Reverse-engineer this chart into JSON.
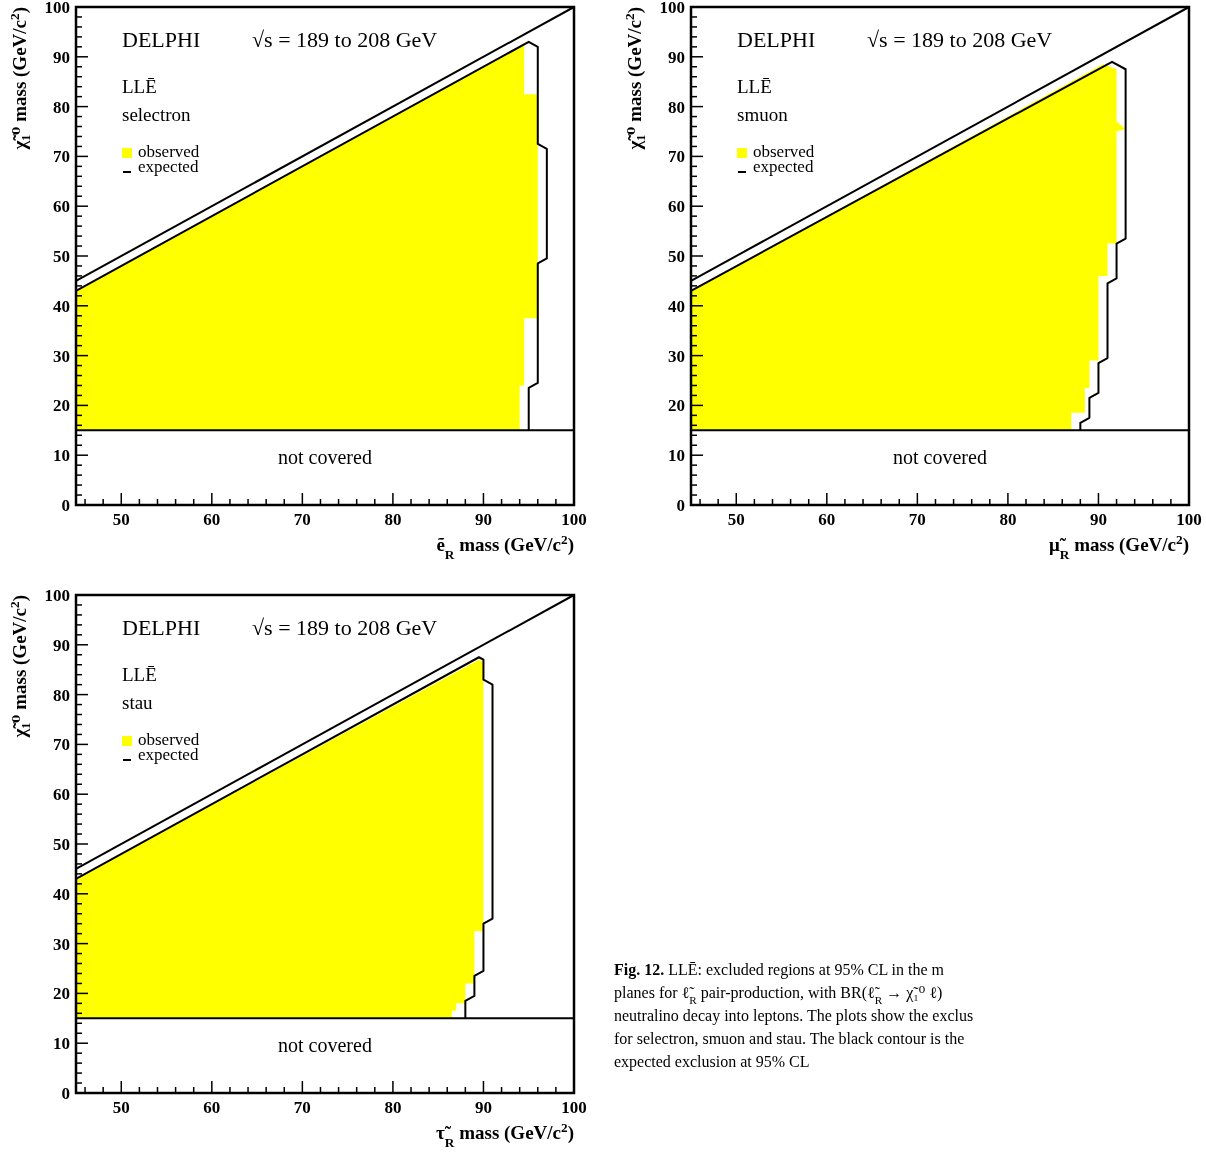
{
  "chart_data": [
    {
      "type": "area",
      "title": "DELPHI",
      "subtitle": "√s = 189 to 208 GeV",
      "annotations": [
        "LLĒ",
        "selectron"
      ],
      "xlabel": "ẽ$_{R}$ mass (GeV/c$^{2}$)",
      "ylabel": "χ̃₁⁰ mass (GeV/c$^{2}$)",
      "xlim": [
        45,
        100
      ],
      "ylim": [
        0,
        100
      ],
      "xticks": [
        {
          "value": 46,
          "label": null
        },
        {
          "value": 48,
          "label": null
        },
        50,
        {
          "value": 52,
          "label": null
        },
        {
          "value": 54,
          "label": null
        },
        {
          "value": 56,
          "label": null
        },
        {
          "value": 58,
          "label": null
        },
        60,
        {
          "value": 62,
          "label": null
        },
        {
          "value": 64,
          "label": null
        },
        {
          "value": 66,
          "label": null
        },
        {
          "value": 68,
          "label": null
        },
        70,
        {
          "value": 72,
          "label": null
        },
        {
          "value": 74,
          "label": null
        },
        {
          "value": 76,
          "label": null
        },
        {
          "value": 78,
          "label": null
        },
        80,
        {
          "value": 82,
          "label": null
        },
        {
          "value": 84,
          "label": null
        },
        {
          "value": 86,
          "label": null
        },
        {
          "value": 88,
          "label": null
        },
        90,
        {
          "value": 92,
          "label": null
        },
        {
          "value": 94,
          "label": null
        },
        {
          "value": 96,
          "label": null
        },
        {
          "value": 98,
          "label": null
        },
        100
      ],
      "yticks": [
        0,
        {
          "value": 2,
          "label": null
        },
        {
          "value": 4,
          "label": null
        },
        {
          "value": 6,
          "label": null
        },
        {
          "value": 8,
          "label": null
        },
        10,
        {
          "value": 12,
          "label": null
        },
        {
          "value": 14,
          "label": null
        },
        {
          "value": 16,
          "label": null
        },
        {
          "value": 18,
          "label": null
        },
        20,
        {
          "value": 22,
          "label": null
        },
        {
          "value": 24,
          "label": null
        },
        {
          "value": 26,
          "label": null
        },
        {
          "value": 28,
          "label": null
        },
        30,
        {
          "value": 32,
          "label": null
        },
        {
          "value": 34,
          "label": null
        },
        {
          "value": 36,
          "label": null
        },
        {
          "value": 38,
          "label": null
        },
        40,
        {
          "value": 42,
          "label": null
        },
        {
          "value": 44,
          "label": null
        },
        {
          "value": 46,
          "label": null
        },
        {
          "value": 48,
          "label": null
        },
        50,
        {
          "value": 52,
          "label": null
        },
        {
          "value": 54,
          "label": null
        },
        {
          "value": 56,
          "label": null
        },
        {
          "value": 58,
          "label": null
        },
        60,
        {
          "value": 62,
          "label": null
        },
        {
          "value": 64,
          "label": null
        },
        {
          "value": 66,
          "label": null
        },
        {
          "value": 68,
          "label": null
        },
        70,
        {
          "value": 72,
          "label": null
        },
        {
          "value": 74,
          "label": null
        },
        {
          "value": 76,
          "label": null
        },
        {
          "value": 78,
          "label": null
        },
        80,
        {
          "value": 82,
          "label": null
        },
        {
          "value": 84,
          "label": null
        },
        {
          "value": 86,
          "label": null
        },
        {
          "value": 88,
          "label": null
        },
        90,
        {
          "value": 92,
          "label": null
        },
        {
          "value": 94,
          "label": null
        },
        {
          "value": 96,
          "label": null
        },
        {
          "value": 98,
          "label": null
        },
        100
      ],
      "grid": false,
      "legend": "top left",
      "ref_lines": [
        {
          "axis": "y",
          "value": 15,
          "label": "not covered"
        }
      ],
      "series": [
        {
          "name": "observed",
          "type": "area",
          "color": "#ffff00",
          "x": [
            45,
            45,
            94.5,
            94.5,
            96,
            96,
            94.5,
            94.5,
            94,
            94
          ],
          "values": [
            15,
            43,
            92.5,
            82.5,
            82.5,
            37.5,
            37.5,
            24,
            24,
            15
          ]
        },
        {
          "name": "expected",
          "type": "line",
          "color": "#000000",
          "x": [
            45,
            95,
            96,
            96,
            97,
            97,
            96,
            96,
            95,
            95
          ],
          "values": [
            43,
            93,
            92,
            72.5,
            71.5,
            49.5,
            48.5,
            24.5,
            23.5,
            15
          ]
        },
        {
          "type": "line",
          "color": "#000000",
          "x": [
            45,
            100
          ],
          "values": [
            45,
            100
          ]
        }
      ]
    },
    {
      "type": "area",
      "title": "DELPHI",
      "subtitle": "√s = 189 to 208 GeV",
      "annotations": [
        "LLĒ",
        "smuon"
      ],
      "xlabel": "μ̃$_{R}$ mass (GeV/c$^{2}$)",
      "ylabel": "χ̃₁⁰ mass (GeV/c$^{2}$)",
      "xlim": [
        45,
        100
      ],
      "ylim": [
        0,
        100
      ],
      "xticks": [
        {
          "value": 46,
          "label": null
        },
        {
          "value": 48,
          "label": null
        },
        50,
        {
          "value": 52,
          "label": null
        },
        {
          "value": 54,
          "label": null
        },
        {
          "value": 56,
          "label": null
        },
        {
          "value": 58,
          "label": null
        },
        60,
        {
          "value": 62,
          "label": null
        },
        {
          "value": 64,
          "label": null
        },
        {
          "value": 66,
          "label": null
        },
        {
          "value": 68,
          "label": null
        },
        70,
        {
          "value": 72,
          "label": null
        },
        {
          "value": 74,
          "label": null
        },
        {
          "value": 76,
          "label": null
        },
        {
          "value": 78,
          "label": null
        },
        80,
        {
          "value": 82,
          "label": null
        },
        {
          "value": 84,
          "label": null
        },
        {
          "value": 86,
          "label": null
        },
        {
          "value": 88,
          "label": null
        },
        90,
        {
          "value": 92,
          "label": null
        },
        {
          "value": 94,
          "label": null
        },
        {
          "value": 96,
          "label": null
        },
        {
          "value": 98,
          "label": null
        },
        100
      ],
      "yticks": [
        0,
        {
          "value": 2,
          "label": null
        },
        {
          "value": 4,
          "label": null
        },
        {
          "value": 6,
          "label": null
        },
        {
          "value": 8,
          "label": null
        },
        10,
        {
          "value": 12,
          "label": null
        },
        {
          "value": 14,
          "label": null
        },
        {
          "value": 16,
          "label": null
        },
        {
          "value": 18,
          "label": null
        },
        20,
        {
          "value": 22,
          "label": null
        },
        {
          "value": 24,
          "label": null
        },
        {
          "value": 26,
          "label": null
        },
        {
          "value": 28,
          "label": null
        },
        30,
        {
          "value": 32,
          "label": null
        },
        {
          "value": 34,
          "label": null
        },
        {
          "value": 36,
          "label": null
        },
        {
          "value": 38,
          "label": null
        },
        40,
        {
          "value": 42,
          "label": null
        },
        {
          "value": 44,
          "label": null
        },
        {
          "value": 46,
          "label": null
        },
        {
          "value": 48,
          "label": null
        },
        50,
        {
          "value": 52,
          "label": null
        },
        {
          "value": 54,
          "label": null
        },
        {
          "value": 56,
          "label": null
        },
        {
          "value": 58,
          "label": null
        },
        60,
        {
          "value": 62,
          "label": null
        },
        {
          "value": 64,
          "label": null
        },
        {
          "value": 66,
          "label": null
        },
        {
          "value": 68,
          "label": null
        },
        70,
        {
          "value": 72,
          "label": null
        },
        {
          "value": 74,
          "label": null
        },
        {
          "value": 76,
          "label": null
        },
        {
          "value": 78,
          "label": null
        },
        80,
        {
          "value": 82,
          "label": null
        },
        {
          "value": 84,
          "label": null
        },
        {
          "value": 86,
          "label": null
        },
        {
          "value": 88,
          "label": null
        },
        90,
        {
          "value": 92,
          "label": null
        },
        {
          "value": 94,
          "label": null
        },
        {
          "value": 96,
          "label": null
        },
        {
          "value": 98,
          "label": null
        },
        100
      ],
      "grid": false,
      "legend": "top left",
      "ref_lines": [
        {
          "axis": "y",
          "value": 15,
          "label": "not covered"
        }
      ],
      "series": [
        {
          "name": "observed",
          "type": "area",
          "color": "#ffff00",
          "x": [
            45,
            45,
            90.5,
            92,
            92,
            93,
            92,
            92,
            91,
            91,
            90,
            90,
            89,
            89,
            88.5,
            88.5,
            87,
            87
          ],
          "values": [
            15,
            43,
            88.5,
            87.5,
            77,
            75.5,
            75,
            52.5,
            52.5,
            46,
            46,
            29,
            29,
            23.5,
            23.5,
            18.5,
            18.5,
            15
          ]
        },
        {
          "name": "expected",
          "type": "line",
          "color": "#000000",
          "x": [
            45,
            91.5,
            93,
            93,
            92,
            92,
            91,
            91,
            90,
            90,
            89,
            89,
            88,
            88
          ],
          "values": [
            43,
            89,
            87.5,
            53.5,
            52.5,
            45.5,
            44.5,
            29.5,
            28.5,
            22.5,
            21.5,
            17.5,
            16.5,
            15
          ]
        },
        {
          "type": "line",
          "color": "#000000",
          "x": [
            45,
            100
          ],
          "values": [
            45,
            100
          ]
        }
      ]
    },
    {
      "type": "area",
      "title": "DELPHI",
      "subtitle": "√s = 189 to 208 GeV",
      "annotations": [
        "LLĒ",
        "stau"
      ],
      "xlabel": "τ̃$_{R}$ mass (GeV/c$^{2}$)",
      "ylabel": "χ̃₁⁰ mass (GeV/c$^{2}$)",
      "xlim": [
        45,
        100
      ],
      "ylim": [
        0,
        100
      ],
      "xticks": [
        {
          "value": 46,
          "label": null
        },
        {
          "value": 48,
          "label": null
        },
        50,
        {
          "value": 52,
          "label": null
        },
        {
          "value": 54,
          "label": null
        },
        {
          "value": 56,
          "label": null
        },
        {
          "value": 58,
          "label": null
        },
        60,
        {
          "value": 62,
          "label": null
        },
        {
          "value": 64,
          "label": null
        },
        {
          "value": 66,
          "label": null
        },
        {
          "value": 68,
          "label": null
        },
        70,
        {
          "value": 72,
          "label": null
        },
        {
          "value": 74,
          "label": null
        },
        {
          "value": 76,
          "label": null
        },
        {
          "value": 78,
          "label": null
        },
        80,
        {
          "value": 82,
          "label": null
        },
        {
          "value": 84,
          "label": null
        },
        {
          "value": 86,
          "label": null
        },
        {
          "value": 88,
          "label": null
        },
        90,
        {
          "value": 92,
          "label": null
        },
        {
          "value": 94,
          "label": null
        },
        {
          "value": 96,
          "label": null
        },
        {
          "value": 98,
          "label": null
        },
        100
      ],
      "yticks": [
        0,
        {
          "value": 2,
          "label": null
        },
        {
          "value": 4,
          "label": null
        },
        {
          "value": 6,
          "label": null
        },
        {
          "value": 8,
          "label": null
        },
        10,
        {
          "value": 12,
          "label": null
        },
        {
          "value": 14,
          "label": null
        },
        {
          "value": 16,
          "label": null
        },
        {
          "value": 18,
          "label": null
        },
        20,
        {
          "value": 22,
          "label": null
        },
        {
          "value": 24,
          "label": null
        },
        {
          "value": 26,
          "label": null
        },
        {
          "value": 28,
          "label": null
        },
        30,
        {
          "value": 32,
          "label": null
        },
        {
          "value": 34,
          "label": null
        },
        {
          "value": 36,
          "label": null
        },
        {
          "value": 38,
          "label": null
        },
        40,
        {
          "value": 42,
          "label": null
        },
        {
          "value": 44,
          "label": null
        },
        {
          "value": 46,
          "label": null
        },
        {
          "value": 48,
          "label": null
        },
        50,
        {
          "value": 52,
          "label": null
        },
        {
          "value": 54,
          "label": null
        },
        {
          "value": 56,
          "label": null
        },
        {
          "value": 58,
          "label": null
        },
        60,
        {
          "value": 62,
          "label": null
        },
        {
          "value": 64,
          "label": null
        },
        {
          "value": 66,
          "label": null
        },
        {
          "value": 68,
          "label": null
        },
        70,
        {
          "value": 72,
          "label": null
        },
        {
          "value": 74,
          "label": null
        },
        {
          "value": 76,
          "label": null
        },
        {
          "value": 78,
          "label": null
        },
        80,
        {
          "value": 82,
          "label": null
        },
        {
          "value": 84,
          "label": null
        },
        {
          "value": 86,
          "label": null
        },
        {
          "value": 88,
          "label": null
        },
        90,
        {
          "value": 92,
          "label": null
        },
        {
          "value": 94,
          "label": null
        },
        {
          "value": 96,
          "label": null
        },
        {
          "value": 98,
          "label": null
        },
        100
      ],
      "grid": false,
      "legend": "top left",
      "ref_lines": [
        {
          "axis": "y",
          "value": 15,
          "label": "not covered"
        }
      ],
      "series": [
        {
          "name": "observed",
          "type": "area",
          "color": "#ffff00",
          "x": [
            45,
            45,
            89.5,
            90,
            90,
            89,
            89,
            88,
            88,
            87,
            87,
            86.5,
            86.5
          ],
          "values": [
            15,
            43,
            87,
            86.5,
            32.5,
            32.5,
            22,
            22,
            18,
            18,
            16.5,
            16.5,
            15
          ]
        },
        {
          "name": "expected",
          "type": "line",
          "color": "#000000",
          "x": [
            45,
            89.5,
            90,
            90,
            91,
            91,
            90,
            90,
            89,
            89,
            88,
            88
          ],
          "values": [
            43,
            87.5,
            87,
            83,
            82,
            35,
            34,
            24.5,
            23.5,
            19.5,
            18.5,
            15
          ]
        },
        {
          "type": "line",
          "color": "#000000",
          "x": [
            45,
            100
          ],
          "values": [
            45,
            100
          ]
        }
      ]
    },
    {
      "type": "other",
      "title": "Fig. 12.",
      "annotations": [
        "LLĒ: excluded regions at 95% CL in the m",
        "planes for ℓ̃$_{R}$ pair-production, with BR(ℓ̃$_{R}$ → χ̃₁⁰ ℓ)",
        "neutralino decay into leptons. The plots show the exclus",
        "for selectron, smuon and stau. The black contour is the",
        "expected exclusion at 95% CL"
      ]
    }
  ]
}
